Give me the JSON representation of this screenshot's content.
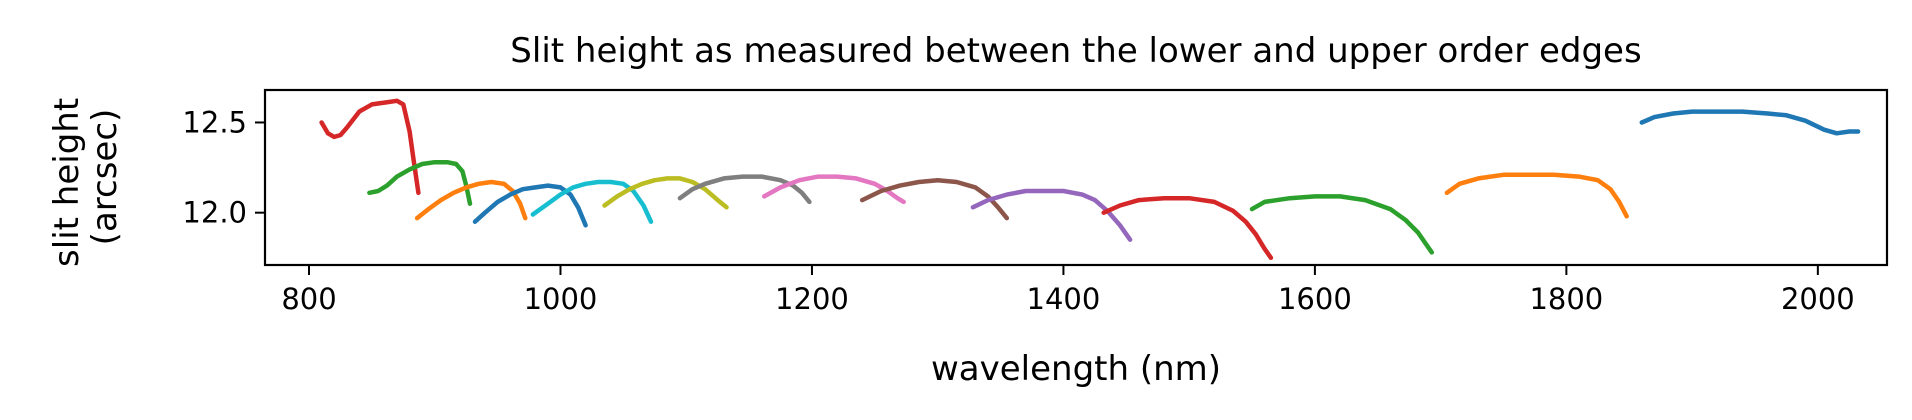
{
  "chart_data": {
    "type": "line",
    "title": "Slit height as measured between the lower and upper order edges",
    "xlabel": "wavelength (nm)",
    "ylabel": [
      "slit height",
      "(arcsec)"
    ],
    "xlim": [
      765,
      2055
    ],
    "ylim": [
      11.71,
      12.68
    ],
    "xticks": [
      800,
      1000,
      1200,
      1400,
      1600,
      1800,
      2000
    ],
    "xtick_labels": [
      "800",
      "1000",
      "1200",
      "1400",
      "1600",
      "1800",
      "2000"
    ],
    "yticks": [
      12.0,
      12.5
    ],
    "ytick_labels": [
      "12.0",
      "12.5"
    ],
    "grid": false,
    "legend": "none",
    "series": [
      {
        "color": "#d62728",
        "x": [
          810,
          815,
          820,
          825,
          830,
          840,
          850,
          860,
          870,
          875,
          880,
          883,
          887
        ],
        "y": [
          12.5,
          12.44,
          12.42,
          12.43,
          12.47,
          12.56,
          12.6,
          12.61,
          12.62,
          12.6,
          12.45,
          12.3,
          12.11
        ]
      },
      {
        "color": "#2ca02c",
        "x": [
          848,
          855,
          862,
          870,
          880,
          890,
          900,
          910,
          917,
          922,
          925,
          928
        ],
        "y": [
          12.11,
          12.12,
          12.15,
          12.2,
          12.24,
          12.27,
          12.28,
          12.28,
          12.27,
          12.23,
          12.15,
          12.05
        ]
      },
      {
        "color": "#ff7f0e",
        "x": [
          886,
          895,
          905,
          915,
          925,
          935,
          945,
          955,
          962,
          968,
          972
        ],
        "y": [
          11.97,
          12.02,
          12.07,
          12.11,
          12.14,
          12.16,
          12.17,
          12.16,
          12.12,
          12.05,
          11.97
        ]
      },
      {
        "color": "#1f77b4",
        "x": [
          932,
          940,
          950,
          960,
          970,
          980,
          990,
          1000,
          1008,
          1014,
          1020
        ],
        "y": [
          11.95,
          12.0,
          12.06,
          12.1,
          12.13,
          12.14,
          12.15,
          12.14,
          12.1,
          12.03,
          11.93
        ]
      },
      {
        "color": "#17becf",
        "x": [
          978,
          990,
          1000,
          1010,
          1020,
          1030,
          1040,
          1050,
          1058,
          1066,
          1072
        ],
        "y": [
          11.99,
          12.05,
          12.1,
          12.14,
          12.16,
          12.17,
          12.17,
          12.16,
          12.12,
          12.04,
          11.95
        ]
      },
      {
        "color": "#bcbd22",
        "x": [
          1035,
          1045,
          1055,
          1065,
          1075,
          1085,
          1095,
          1105,
          1115,
          1125,
          1132
        ],
        "y": [
          12.04,
          12.09,
          12.13,
          12.16,
          12.18,
          12.19,
          12.19,
          12.17,
          12.13,
          12.07,
          12.03
        ]
      },
      {
        "color": "#7f7f7f",
        "x": [
          1095,
          1105,
          1115,
          1130,
          1145,
          1160,
          1175,
          1185,
          1192,
          1198
        ],
        "y": [
          12.08,
          12.13,
          12.16,
          12.19,
          12.2,
          12.2,
          12.18,
          12.15,
          12.11,
          12.06
        ]
      },
      {
        "color": "#e377c2",
        "x": [
          1162,
          1175,
          1190,
          1205,
          1220,
          1235,
          1250,
          1260,
          1268,
          1273
        ],
        "y": [
          12.09,
          12.14,
          12.18,
          12.2,
          12.2,
          12.19,
          12.16,
          12.12,
          12.08,
          12.06
        ]
      },
      {
        "color": "#8c564b",
        "x": [
          1240,
          1255,
          1270,
          1285,
          1300,
          1315,
          1330,
          1340,
          1348,
          1355
        ],
        "y": [
          12.07,
          12.12,
          12.15,
          12.17,
          12.18,
          12.17,
          12.14,
          12.09,
          12.03,
          11.97
        ]
      },
      {
        "color": "#9467bd",
        "x": [
          1328,
          1340,
          1355,
          1370,
          1385,
          1400,
          1415,
          1425,
          1435,
          1445,
          1453
        ],
        "y": [
          12.03,
          12.07,
          12.1,
          12.12,
          12.12,
          12.12,
          12.1,
          12.07,
          12.01,
          11.93,
          11.85
        ]
      },
      {
        "color": "#d62728",
        "x": [
          1432,
          1445,
          1460,
          1480,
          1500,
          1520,
          1535,
          1545,
          1553,
          1560,
          1565
        ],
        "y": [
          12.0,
          12.04,
          12.07,
          12.08,
          12.08,
          12.06,
          12.01,
          11.95,
          11.88,
          11.8,
          11.75
        ]
      },
      {
        "color": "#2ca02c",
        "x": [
          1550,
          1560,
          1580,
          1600,
          1620,
          1640,
          1660,
          1672,
          1682,
          1688,
          1693
        ],
        "y": [
          12.02,
          12.06,
          12.08,
          12.09,
          12.09,
          12.07,
          12.02,
          11.96,
          11.89,
          11.83,
          11.78
        ]
      },
      {
        "color": "#ff7f0e",
        "x": [
          1705,
          1715,
          1730,
          1750,
          1770,
          1790,
          1810,
          1825,
          1835,
          1842,
          1848
        ],
        "y": [
          12.11,
          12.16,
          12.19,
          12.21,
          12.21,
          12.21,
          12.2,
          12.18,
          12.13,
          12.06,
          11.98
        ]
      },
      {
        "color": "#1f77b4",
        "x": [
          1860,
          1870,
          1885,
          1900,
          1920,
          1940,
          1960,
          1975,
          1990,
          2005,
          2015,
          2025,
          2032
        ],
        "y": [
          12.5,
          12.53,
          12.55,
          12.56,
          12.56,
          12.56,
          12.55,
          12.54,
          12.51,
          12.46,
          12.44,
          12.45,
          12.45
        ]
      }
    ]
  }
}
